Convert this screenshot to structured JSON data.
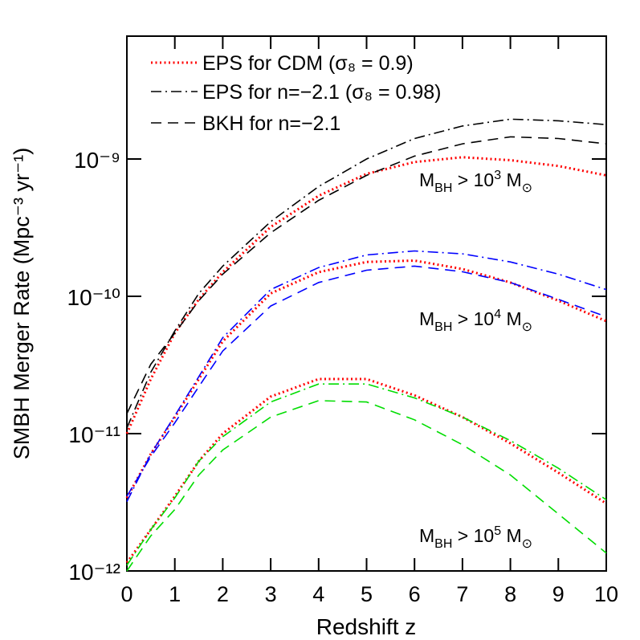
{
  "chart_data": {
    "type": "line",
    "xlabel": "Redshift z",
    "ylabel": "SMBH Merger Rate (Mpc⁻³ yr⁻¹)",
    "log_y": true,
    "x": [
      0,
      0.5,
      1,
      1.5,
      2,
      3,
      4,
      5,
      6,
      7,
      8,
      9,
      10
    ],
    "xlim": [
      0,
      10
    ],
    "xticks": [
      0,
      1,
      2,
      3,
      4,
      5,
      6,
      7,
      8,
      9,
      10
    ],
    "ylim": [
      1e-12,
      7.85e-09
    ],
    "yticks": [
      {
        "value": 1e-12,
        "label": "10⁻¹²"
      },
      {
        "value": 1e-11,
        "label": "10⁻¹¹"
      },
      {
        "value": 1e-10,
        "label": "10⁻¹⁰"
      },
      {
        "value": 1e-09,
        "label": "10⁻⁹"
      }
    ],
    "legend_position": "upper left",
    "series": [
      {
        "name": "EPS for CDM (σ₈ = 0.9)",
        "color": "#ff0000",
        "dash": "dotted",
        "values": [
          1e-11,
          2.5e-11,
          5.4e-11,
          9.5e-11,
          1.5e-10,
          3.2e-10,
          5.4e-10,
          7.8e-10,
          9.5e-10,
          1.03e-09,
          9.8e-10,
          8.9e-10,
          7.6e-10
        ]
      },
      {
        "name": "EPS for n=−2.1 (σ₈ = 0.98)",
        "color": "#000000",
        "dash": "dashdot",
        "values": [
          1.1e-11,
          2.8e-11,
          5.6e-11,
          1.05e-10,
          1.66e-10,
          3.5e-10,
          6.3e-10,
          1e-09,
          1.41e-09,
          1.74e-09,
          1.95e-09,
          1.9e-09,
          1.78e-09
        ]
      },
      {
        "name": "BKH for n=−2.1",
        "color": "#000000",
        "dash": "dashed",
        "values": [
          1.4e-11,
          3.2e-11,
          5.4e-11,
          9.3e-11,
          1.45e-10,
          2.9e-10,
          5e-10,
          7.6e-10,
          1.05e-09,
          1.29e-09,
          1.45e-09,
          1.41e-09,
          1.29e-09
        ]
      },
      {
        "color": "#ff0000",
        "dash": "dotted",
        "values": [
          3.4e-12,
          7.1e-12,
          1.32e-11,
          2.5e-11,
          4.7e-11,
          1.05e-10,
          1.5e-10,
          1.78e-10,
          1.82e-10,
          1.58e-10,
          1.26e-10,
          9.3e-11,
          6.6e-11
        ]
      },
      {
        "color": "#0000ff",
        "dash": "dashdot",
        "values": [
          3.2e-12,
          7.1e-12,
          1.35e-11,
          2.6e-11,
          5e-11,
          1.12e-10,
          1.62e-10,
          2e-10,
          2.14e-10,
          2.04e-10,
          1.78e-10,
          1.45e-10,
          1.12e-10
        ]
      },
      {
        "color": "#0000ff",
        "dash": "dashed",
        "values": [
          3.5e-12,
          6.8e-12,
          1.2e-11,
          2.2e-11,
          4e-11,
          8.5e-11,
          1.26e-10,
          1.55e-10,
          1.66e-10,
          1.51e-10,
          1.26e-10,
          9.5e-11,
          7.1e-11
        ]
      },
      {
        "color": "#ff0000",
        "dash": "dotted",
        "values": [
          1.15e-12,
          2e-12,
          3.5e-12,
          6.3e-12,
          1e-11,
          1.86e-11,
          2.5e-11,
          2.5e-11,
          1.9e-11,
          1.32e-11,
          8.5e-12,
          5.2e-12,
          3.1e-12
        ]
      },
      {
        "color": "#00dd00",
        "dash": "dashdot",
        "values": [
          1.1e-12,
          2e-12,
          3.4e-12,
          6.3e-12,
          9.5e-12,
          1.7e-11,
          2.3e-11,
          2.3e-11,
          1.82e-11,
          1.32e-11,
          8.9e-12,
          5.6e-12,
          3.3e-12
        ]
      },
      {
        "color": "#00dd00",
        "dash": "dashed",
        "values": [
          1e-12,
          1.8e-12,
          2.8e-12,
          5e-12,
          7.6e-12,
          1.32e-11,
          1.74e-11,
          1.7e-11,
          1.26e-11,
          8.3e-12,
          5e-12,
          2.6e-12,
          1.35e-12
        ]
      }
    ],
    "annotations": [
      {
        "parts": [
          "M",
          "BH",
          " > 10",
          "3",
          " M",
          "⊙"
        ]
      },
      {
        "parts": [
          "M",
          "BH",
          " > 10",
          "4",
          " M",
          "⊙"
        ]
      },
      {
        "parts": [
          "M",
          "BH",
          " > 10",
          "5",
          " M",
          "⊙"
        ]
      }
    ]
  }
}
